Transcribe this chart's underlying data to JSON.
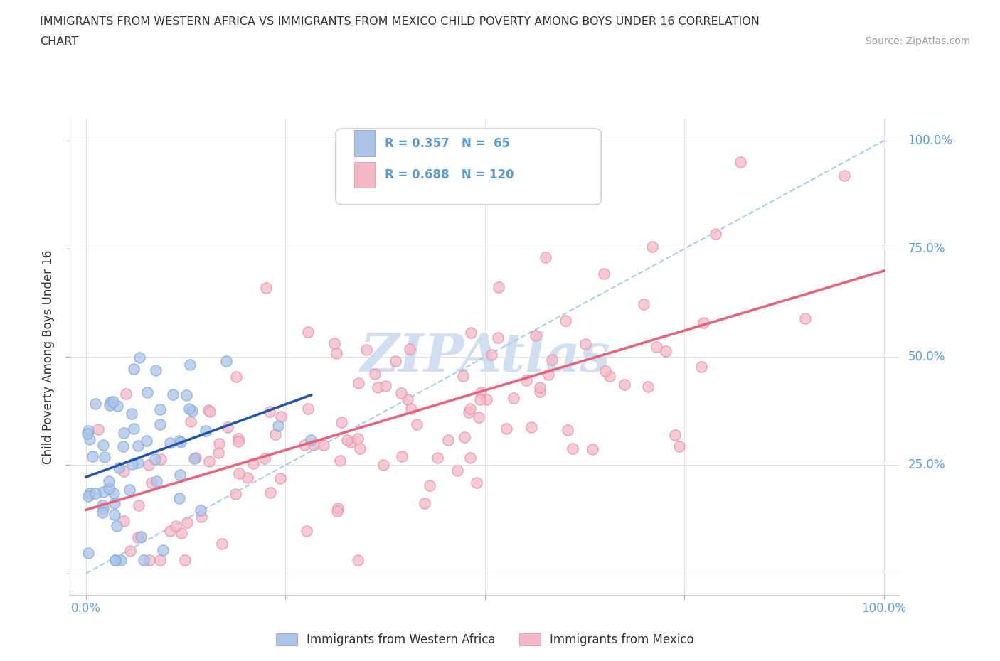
{
  "title_line1": "IMMIGRANTS FROM WESTERN AFRICA VS IMMIGRANTS FROM MEXICO CHILD POVERTY AMONG BOYS UNDER 16 CORRELATION",
  "title_line2": "CHART",
  "source": "Source: ZipAtlas.com",
  "ylabel": "Child Poverty Among Boys Under 16",
  "western_africa_R": 0.357,
  "western_africa_N": 65,
  "mexico_R": 0.688,
  "mexico_N": 120,
  "wa_color": "#aac4e8",
  "mx_color": "#f5b8c8",
  "wa_line_color": "#2255aa",
  "mx_line_color": "#e8607a",
  "diag_line_color": "#aaccee",
  "tick_label_color": "#5b9bd5",
  "title_color": "#333333",
  "source_color": "#999999",
  "ylabel_color": "#333333",
  "background": "#ffffff",
  "legend_color_wa": "#aac4e8",
  "legend_color_mx": "#f5b8c8",
  "watermark_color": "#d0dff0",
  "xlim": [
    -0.02,
    1.02
  ],
  "ylim": [
    -0.05,
    1.05
  ]
}
